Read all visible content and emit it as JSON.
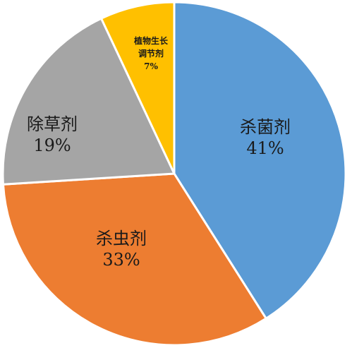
{
  "chart_data": {
    "type": "pie",
    "slices": [
      {
        "name": "杀菌剂",
        "value": 41,
        "value_label": "41%",
        "color": "#5b9bd5"
      },
      {
        "name": "杀虫剂",
        "value": 33,
        "value_label": "33%",
        "color": "#ed7d31"
      },
      {
        "name": "除草剂",
        "value": 19,
        "value_label": "19%",
        "color": "#a5a5a5"
      },
      {
        "name": "植物生长调节剂",
        "name_lines": [
          "植物生长",
          "调节剂"
        ],
        "value": 7,
        "value_label": "7%",
        "color": "#ffc000"
      }
    ],
    "start_angle_deg": 0,
    "direction": "clockwise",
    "legend": "none",
    "title": ""
  }
}
